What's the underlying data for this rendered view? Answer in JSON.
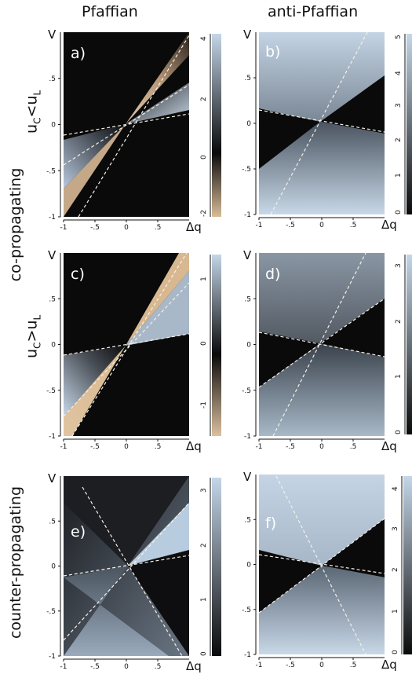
{
  "columns": {
    "left": "Pfaffian",
    "right": "anti-Pfaffian"
  },
  "rows": {
    "co": "co-propagating",
    "uc_lt_ul": {
      "base": "u",
      "sub1": "C",
      "op": "<u",
      "sub2": "L"
    },
    "uc_gt_ul": {
      "base": "u",
      "sub1": "C",
      "op": ">u",
      "sub2": "L"
    },
    "counter": "counter-propagating"
  },
  "axis": {
    "y_label": "V",
    "x_label": "Δq",
    "x_ticks": [
      "-1",
      "-.5",
      "0",
      ".5"
    ],
    "y_ticks": [
      ".5",
      "0",
      "-.5",
      "-1"
    ]
  },
  "panels": [
    {
      "id": "a",
      "letter": "a)",
      "colorbar_ticks": [
        "4",
        "2",
        "0",
        "-2"
      ]
    },
    {
      "id": "b",
      "letter": "b)",
      "colorbar_ticks": [
        "5",
        "4",
        "3",
        "2",
        "1",
        "0"
      ]
    },
    {
      "id": "c",
      "letter": "c)",
      "colorbar_ticks": [
        "1",
        "0",
        "-1"
      ]
    },
    {
      "id": "d",
      "letter": "d)",
      "colorbar_ticks": [
        "3",
        "2",
        "1",
        "0"
      ]
    },
    {
      "id": "e",
      "letter": "e)",
      "colorbar_ticks": [
        "3",
        "2",
        "1",
        "0"
      ]
    },
    {
      "id": "f",
      "letter": "f)",
      "colorbar_ticks": [
        "4",
        "3",
        "2",
        "1",
        "0"
      ]
    }
  ],
  "colors": {
    "dark": "#0a0a0a",
    "light_blue": "#b8cce0",
    "tan": "#dcc4a4",
    "dashed_line": "#f5f0e8"
  }
}
